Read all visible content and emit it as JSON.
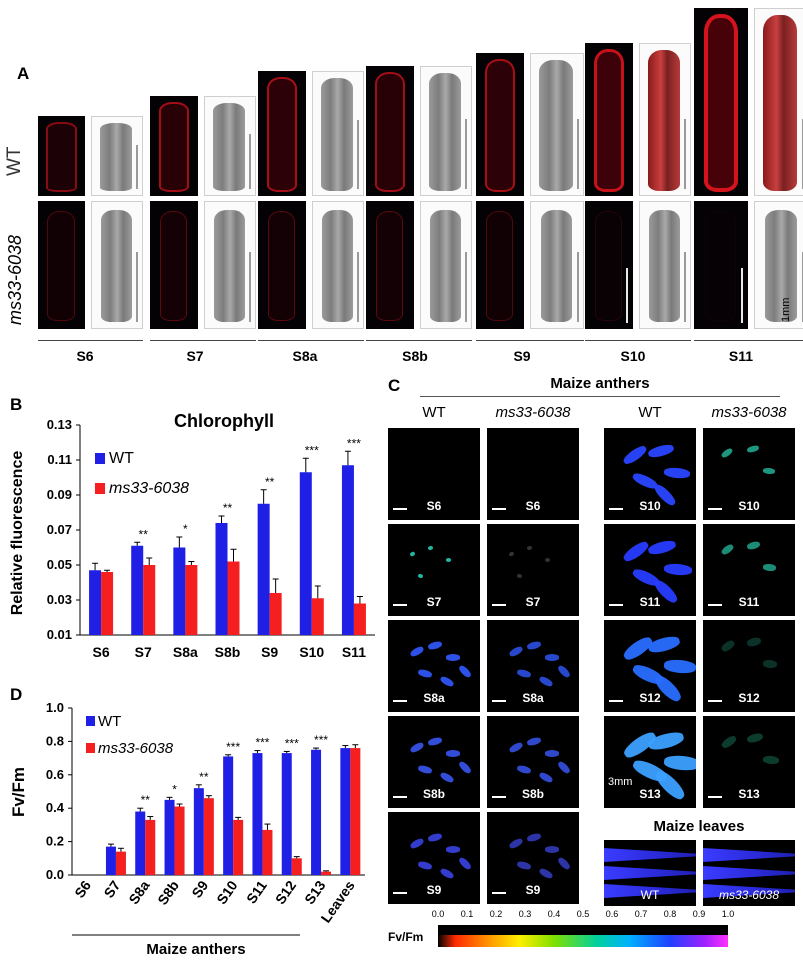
{
  "panelA": {
    "letter": "A",
    "rows": [
      "WT",
      "ms33-6038"
    ],
    "stages": [
      "S6",
      "S7",
      "S8a",
      "S8b",
      "S9",
      "S10",
      "S11"
    ],
    "scale_label": "1mm"
  },
  "panelB": {
    "letter": "B",
    "title": "Chlorophyll",
    "ylabel": "Relative fluorescence",
    "legend": [
      "WT",
      "ms33-6038"
    ]
  },
  "panelC": {
    "letter": "C",
    "header": "Maize anthers",
    "col_labels": [
      "WT",
      "ms33-6038",
      "WT",
      "ms33-6038"
    ],
    "left_stages": [
      "S6",
      "S7",
      "S8a",
      "S8b",
      "S9"
    ],
    "right_stages": [
      "S10",
      "S11",
      "S12",
      "S13"
    ],
    "scale_text": "3mm",
    "leaves_header": "Maize leaves",
    "leaf_labels": [
      "WT",
      "ms33-6038"
    ],
    "colorbar_label": "Fv/Fm",
    "colorbar_ticks": [
      "0.0",
      "0.1",
      "0.2",
      "0.3",
      "0.4",
      "0.5",
      "0.6",
      "0.7",
      "0.8",
      "0.9",
      "1.0"
    ]
  },
  "panelD": {
    "letter": "D",
    "ylabel": "Fv/Fm",
    "xlabel": "Maize anthers",
    "legend": [
      "WT",
      "ms33-6038"
    ]
  },
  "colors": {
    "wt": "#1f1fe6",
    "mutant": "#f51f1f"
  },
  "chart_data": [
    {
      "type": "bar",
      "title": "Chlorophyll",
      "xlabel": "",
      "ylabel": "Relative fluorescence",
      "categories": [
        "S6",
        "S7",
        "S8a",
        "S8b",
        "S9",
        "S10",
        "S11"
      ],
      "ylim": [
        0.01,
        0.13
      ],
      "yticks": [
        "0.01",
        "0.03",
        "0.05",
        "0.07",
        "0.09",
        "0.11",
        "0.13"
      ],
      "series": [
        {
          "name": "WT",
          "values": [
            0.047,
            0.061,
            0.06,
            0.074,
            0.085,
            0.103,
            0.107
          ],
          "errors": [
            0.004,
            0.002,
            0.006,
            0.004,
            0.008,
            0.008,
            0.008
          ]
        },
        {
          "name": "ms33-6038",
          "values": [
            0.046,
            0.05,
            0.05,
            0.052,
            0.034,
            0.031,
            0.028
          ],
          "errors": [
            0.001,
            0.004,
            0.002,
            0.007,
            0.008,
            0.007,
            0.004
          ]
        }
      ],
      "significance": [
        "",
        "**",
        "*",
        "**",
        "**",
        "***",
        "***"
      ],
      "legend_position": "top-left"
    },
    {
      "type": "bar",
      "title": "",
      "xlabel": "Maize anthers",
      "ylabel": "Fv/Fm",
      "categories": [
        "S6",
        "S7",
        "S8a",
        "S8b",
        "S9",
        "S10",
        "S11",
        "S12",
        "S13",
        "Leaves"
      ],
      "ylim": [
        0.0,
        1.0
      ],
      "yticks": [
        "0.0",
        "0.2",
        "0.4",
        "0.6",
        "0.8",
        "1.0"
      ],
      "series": [
        {
          "name": "WT",
          "values": [
            0.0,
            0.17,
            0.38,
            0.45,
            0.52,
            0.71,
            0.73,
            0.73,
            0.75,
            0.76
          ],
          "errors": [
            0,
            0.015,
            0.02,
            0.015,
            0.02,
            0.01,
            0.015,
            0.01,
            0.01,
            0.015
          ]
        },
        {
          "name": "ms33-6038",
          "values": [
            0.0,
            0.14,
            0.33,
            0.41,
            0.46,
            0.33,
            0.27,
            0.1,
            0.02,
            0.76
          ],
          "errors": [
            0,
            0.02,
            0.02,
            0.015,
            0.015,
            0.015,
            0.035,
            0.01,
            0.005,
            0.02
          ]
        }
      ],
      "significance": [
        "",
        "",
        "**",
        "*",
        "**",
        "***",
        "***",
        "***",
        "***",
        ""
      ],
      "legend_position": "top-left"
    }
  ]
}
